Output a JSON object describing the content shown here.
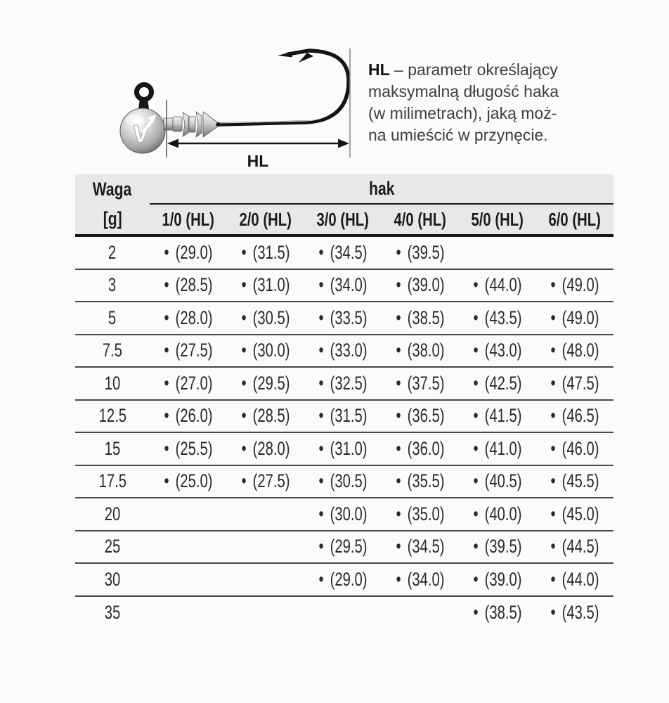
{
  "illustration": {
    "dimension_label": "HL",
    "logo_letter": "V",
    "description": {
      "term": "HL",
      "line1_rest": " – parametr określający",
      "line2": "maksymalną długość haka",
      "line3": "(w milimetrach), jaką moż-",
      "line4": "na umieścić w przynęcie."
    }
  },
  "table": {
    "weight_header": "Waga",
    "weight_unit": "[g]",
    "group_header": "hak",
    "bullet": "•",
    "columns": [
      "1/0 (HL)",
      "2/0 (HL)",
      "3/0 (HL)",
      "4/0 (HL)",
      "5/0 (HL)",
      "6/0 (HL)"
    ],
    "rows": [
      {
        "weight": "2",
        "cells": [
          "(29.0)",
          "(31.5)",
          "(34.5)",
          "(39.5)",
          null,
          null
        ]
      },
      {
        "weight": "3",
        "cells": [
          "(28.5)",
          "(31.0)",
          "(34.0)",
          "(39.0)",
          "(44.0)",
          "(49.0)"
        ]
      },
      {
        "weight": "5",
        "cells": [
          "(28.0)",
          "(30.5)",
          "(33.5)",
          "(38.5)",
          "(43.5)",
          "(49.0)"
        ]
      },
      {
        "weight": "7.5",
        "cells": [
          "(27.5)",
          "(30.0)",
          "(33.0)",
          "(38.0)",
          "(43.0)",
          "(48.0)"
        ]
      },
      {
        "weight": "10",
        "cells": [
          "(27.0)",
          "(29.5)",
          "(32.5)",
          "(37.5)",
          "(42.5)",
          "(47.5)"
        ]
      },
      {
        "weight": "12.5",
        "cells": [
          "(26.0)",
          "(28.5)",
          "(31.5)",
          "(36.5)",
          "(41.5)",
          "(46.5)"
        ]
      },
      {
        "weight": "15",
        "cells": [
          "(25.5)",
          "(28.0)",
          "(31.0)",
          "(36.0)",
          "(41.0)",
          "(46.0)"
        ]
      },
      {
        "weight": "17.5",
        "cells": [
          "(25.0)",
          "(27.5)",
          "(30.5)",
          "(35.5)",
          "(40.5)",
          "(45.5)"
        ]
      },
      {
        "weight": "20",
        "cells": [
          null,
          null,
          "(30.0)",
          "(35.0)",
          "(40.0)",
          "(45.0)"
        ]
      },
      {
        "weight": "25",
        "cells": [
          null,
          null,
          "(29.5)",
          "(34.5)",
          "(39.5)",
          "(44.5)"
        ]
      },
      {
        "weight": "30",
        "cells": [
          null,
          null,
          "(29.0)",
          "(34.0)",
          "(39.0)",
          "(44.0)"
        ]
      },
      {
        "weight": "35",
        "cells": [
          null,
          null,
          null,
          null,
          "(38.5)",
          "(43.5)"
        ]
      }
    ]
  },
  "colors": {
    "header_bg": "#e7e8e9",
    "heavy_rule": "#161616",
    "row_rule": "#474749",
    "text": "#262626"
  }
}
